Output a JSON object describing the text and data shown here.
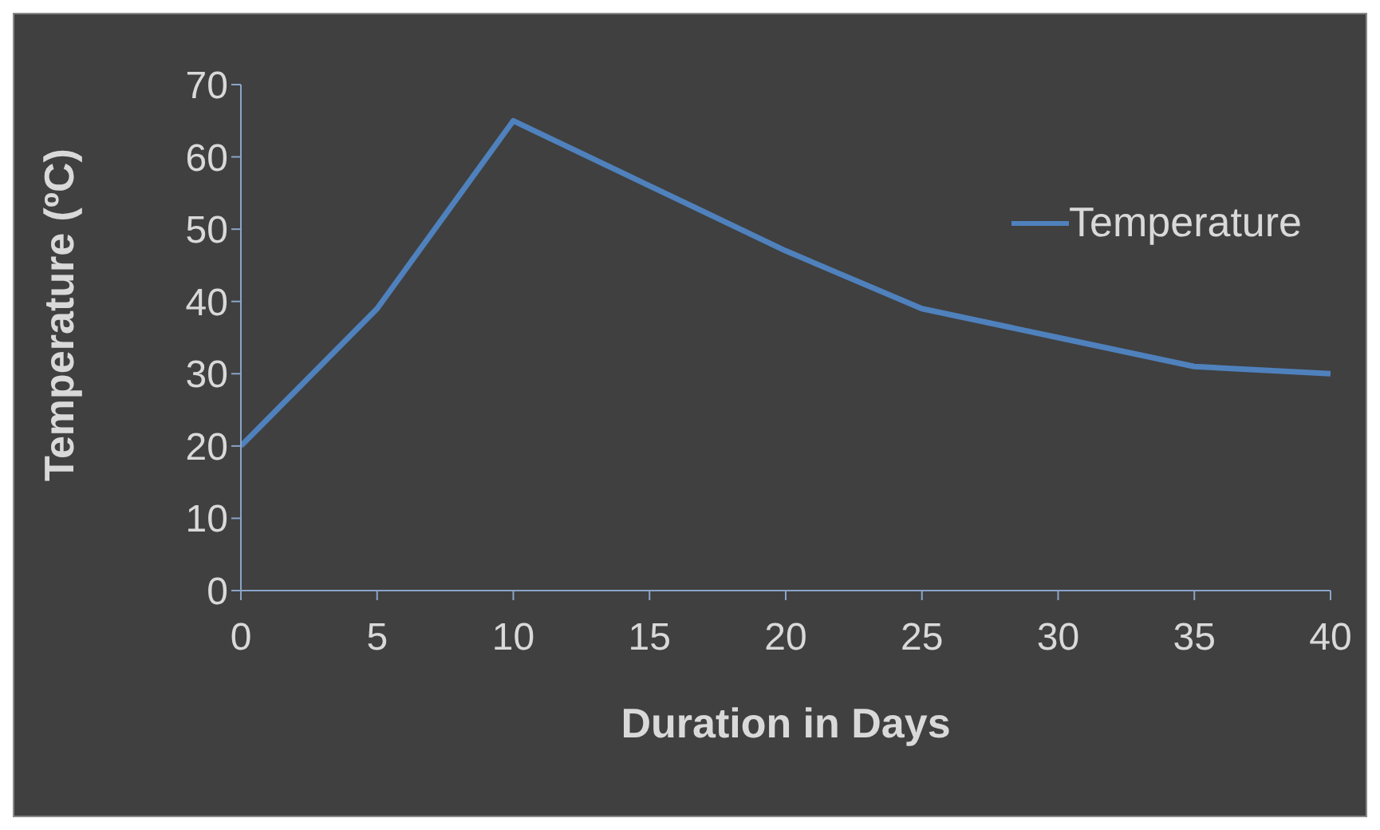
{
  "chart_data": {
    "type": "line",
    "xlabel": "Duration in Days",
    "ylabel": "Temperature (ºC)",
    "x": [
      0,
      5,
      10,
      15,
      20,
      25,
      30,
      35,
      40
    ],
    "series": [
      {
        "name": "Temperature",
        "color": "#4f81bd",
        "values": [
          20,
          39,
          65,
          56,
          47,
          39,
          35,
          31,
          30
        ]
      }
    ],
    "xlim": [
      0,
      40
    ],
    "xticks": [
      0,
      5,
      10,
      15,
      20,
      25,
      30,
      35,
      40
    ],
    "ylim": [
      0,
      70
    ],
    "yticks": [
      0,
      10,
      20,
      30,
      40,
      50,
      60,
      70
    ],
    "grid": false,
    "legend": "top right",
    "marker": "none",
    "line_style": "solid"
  }
}
